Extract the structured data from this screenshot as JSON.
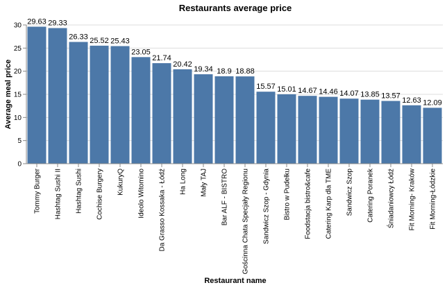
{
  "chart_data": {
    "type": "bar",
    "title": "Restaurants average price",
    "xlabel": "Restaurant name",
    "ylabel": "Average meal price",
    "ylim": [
      0,
      30
    ],
    "yticks": [
      0,
      5,
      10,
      15,
      20,
      25,
      30
    ],
    "grid": true,
    "bar_color": "#4c78a8",
    "categories": [
      "Tommy Burger",
      "Hashtag Sushi II",
      "Hashtag Sushi",
      "Cochise Burgery",
      "KukuryQ",
      "Ideolo Witomino",
      "Da Grasso Kossaka - Łódź",
      "Ha Long",
      "Mały TAJ",
      "Bar ALF - BISTRO",
      "Gościnna Chata Specjały Regionu",
      "Sandwicz Szop - Gdynia",
      "Bistro w Pudełku",
      "Foodstacja bistro&cafe",
      "Catering Karp dla TME",
      "Sandwicz Szop",
      "Catering Poranek",
      "Śniadaniowcy Łódź",
      "Fit Morning- Kraków",
      "Fit Morning-Łódzkie"
    ],
    "values": [
      29.63,
      29.33,
      26.33,
      25.52,
      25.43,
      23.05,
      21.74,
      20.42,
      19.34,
      18.9,
      18.88,
      15.57,
      15.01,
      14.67,
      14.46,
      14.07,
      13.85,
      13.57,
      12.63,
      12.09
    ]
  }
}
